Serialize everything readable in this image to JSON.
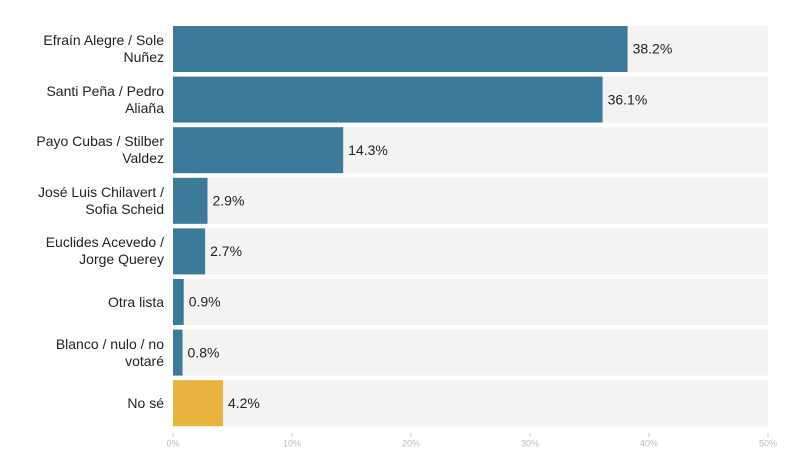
{
  "chart_data": {
    "type": "bar",
    "orientation": "horizontal",
    "categories": [
      "Efraín Alegre / Sole Nuñez",
      "Santi Peña / Pedro Aliaña",
      "Payo Cubas / Stilber Valdez",
      "José Luis Chilavert / Sofia Scheid",
      "Euclides Acevedo / Jorge Querey",
      "Otra lista",
      "Blanco / nulo / no votaré",
      "No sé"
    ],
    "values": [
      38.2,
      36.1,
      14.3,
      2.9,
      2.7,
      0.9,
      0.8,
      4.2
    ],
    "value_labels": [
      "38.2%",
      "36.1%",
      "14.3%",
      "2.9%",
      "2.7%",
      "0.9%",
      "0.8%",
      "4.2%"
    ],
    "colors": [
      "#3b7a99",
      "#3b7a99",
      "#3b7a99",
      "#3b7a99",
      "#3b7a99",
      "#3b7a99",
      "#3b7a99",
      "#e9b33e"
    ],
    "xlim": [
      0,
      50
    ],
    "xticks": [
      {
        "value": 0,
        "label": "0%"
      },
      {
        "value": 10,
        "label": "10%"
      },
      {
        "value": 20,
        "label": "20%"
      },
      {
        "value": 30,
        "label": "30%"
      },
      {
        "value": 40,
        "label": "40%"
      },
      {
        "value": 50,
        "label": "50%"
      }
    ]
  }
}
